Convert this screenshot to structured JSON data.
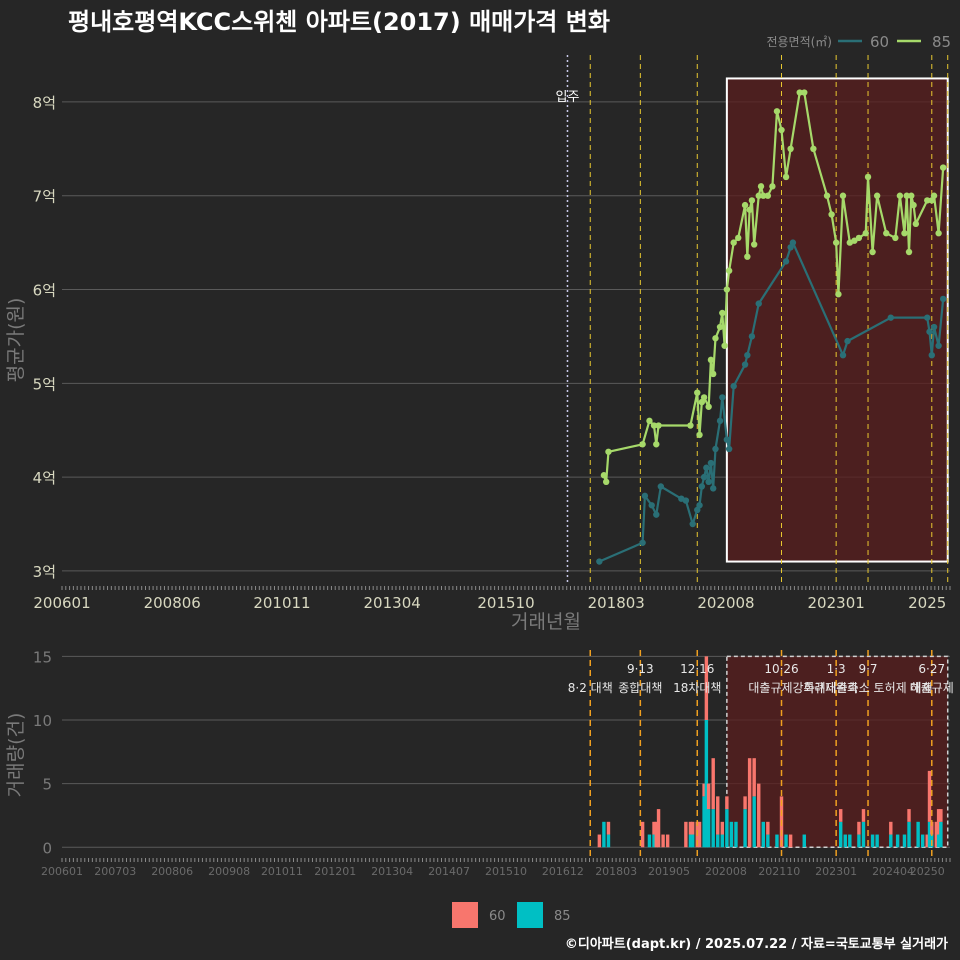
{
  "title": "평내호평역KCC스위첸 아파트(2017) 매매가격 변화",
  "footer": "©디아파트(dapt.kr) / 2025.07.22 / 자료=국토교통부 실거래가",
  "colors": {
    "bg": "#262626",
    "grid": "#5a5a5a",
    "text_axis": "#d8d8c0",
    "text_dim": "#8a8a8a",
    "s60_line": "#2a6f76",
    "s85_line": "#a6d96a",
    "bar60": "#f8766d",
    "bar85": "#00bfc4",
    "policy": "#e8c830",
    "policy_bottom": "#f0a020",
    "shade": "#5a1e1e",
    "box": "#ffffff"
  },
  "chart_data": [
    {
      "type": "line",
      "name": "price",
      "title": "평내호평역KCC스위첸 아파트(2017) 매매가격 변화",
      "xlabel": "거래년월",
      "ylabel": "평균가(원)",
      "xlim": [
        2006.0,
        2025.5
      ],
      "ylim": [
        2.85,
        8.5
      ],
      "ytick_values": [
        3,
        4,
        5,
        6,
        7,
        8
      ],
      "ytick_labels": [
        "3억",
        "4억",
        "5억",
        "6억",
        "7억",
        "8억"
      ],
      "xtick_values": [
        2006.0,
        2008.42,
        2010.83,
        2013.25,
        2015.75,
        2018.17,
        2020.58,
        2023.0,
        2025.0
      ],
      "xtick_labels": [
        "200601",
        "200806",
        "201011",
        "201304",
        "201510",
        "201803",
        "202008",
        "202301",
        "2025"
      ],
      "legend_title": "전용면적(㎡)",
      "legend_labels": [
        "60",
        "85"
      ],
      "move_in_label": "입주",
      "move_in_x": 2017.1,
      "policy_x": [
        2017.6,
        2018.7,
        2019.95,
        2021.8,
        2023.0,
        2023.7,
        2025.1,
        2025.45
      ],
      "highlight_box": {
        "x": [
          2020.6,
          2025.45
        ],
        "y": [
          3.1,
          8.25
        ]
      },
      "series": [
        {
          "name": "60",
          "x": [
            2017.8,
            2018.75,
            2018.8,
            2018.95,
            2019.05,
            2019.15,
            2019.6,
            2019.7,
            2019.85,
            2019.95,
            2020.0,
            2020.05,
            2020.1,
            2020.15,
            2020.2,
            2020.25,
            2020.3,
            2020.35,
            2020.45,
            2020.5,
            2020.6,
            2020.65,
            2020.75,
            2021.0,
            2021.05,
            2021.15,
            2021.3,
            2021.9,
            2022.0,
            2022.05,
            2023.15,
            2023.25,
            2024.2,
            2025.0,
            2025.05,
            2025.1,
            2025.15,
            2025.25,
            2025.35
          ],
          "values": [
            3.1,
            3.3,
            3.8,
            3.7,
            3.6,
            3.9,
            3.77,
            3.75,
            3.5,
            3.65,
            3.7,
            3.9,
            4.0,
            4.1,
            3.95,
            4.15,
            3.88,
            4.3,
            4.6,
            4.85,
            4.4,
            4.3,
            4.97,
            5.2,
            5.3,
            5.5,
            5.85,
            6.3,
            6.45,
            6.5,
            5.3,
            5.45,
            5.7,
            5.7,
            5.55,
            5.3,
            5.6,
            5.4,
            5.9
          ]
        },
        {
          "name": "85",
          "x": [
            2017.9,
            2017.95,
            2018.0,
            2018.75,
            2018.9,
            2019.0,
            2019.05,
            2019.1,
            2019.8,
            2019.95,
            2020.0,
            2020.05,
            2020.1,
            2020.2,
            2020.25,
            2020.3,
            2020.35,
            2020.45,
            2020.5,
            2020.55,
            2020.6,
            2020.65,
            2020.75,
            2020.85,
            2021.0,
            2021.05,
            2021.1,
            2021.15,
            2021.2,
            2021.3,
            2021.35,
            2021.4,
            2021.5,
            2021.6,
            2021.7,
            2021.8,
            2021.9,
            2022.0,
            2022.2,
            2022.3,
            2022.5,
            2022.8,
            2022.9,
            2023.0,
            2023.05,
            2023.15,
            2023.3,
            2023.4,
            2023.5,
            2023.65,
            2023.7,
            2023.8,
            2023.9,
            2024.1,
            2024.3,
            2024.4,
            2024.5,
            2024.55,
            2024.6,
            2024.65,
            2024.7,
            2024.75,
            2025.0,
            2025.1,
            2025.15,
            2025.25,
            2025.35
          ],
          "values": [
            4.02,
            3.95,
            4.27,
            4.35,
            4.6,
            4.55,
            4.35,
            4.55,
            4.55,
            4.9,
            4.45,
            4.8,
            4.85,
            4.75,
            5.25,
            5.1,
            5.48,
            5.6,
            5.75,
            5.4,
            6.0,
            6.2,
            6.5,
            6.55,
            6.9,
            6.35,
            6.85,
            6.95,
            6.48,
            7.0,
            7.1,
            7.0,
            7.0,
            7.1,
            7.9,
            7.7,
            7.2,
            7.5,
            8.1,
            8.1,
            7.5,
            7.0,
            6.8,
            6.5,
            5.95,
            7.0,
            6.5,
            6.52,
            6.55,
            6.6,
            7.2,
            6.4,
            7.0,
            6.6,
            6.55,
            7.0,
            6.6,
            7.0,
            6.4,
            7.0,
            6.9,
            6.7,
            6.95,
            6.95,
            7.0,
            6.6,
            7.3
          ]
        }
      ]
    },
    {
      "type": "bar",
      "name": "volume",
      "xlabel": "",
      "ylabel": "거래량(건)",
      "xlim": [
        2006.0,
        2025.5
      ],
      "ylim": [
        -1,
        15.5
      ],
      "ytick_values": [
        0,
        5,
        10,
        15
      ],
      "ytick_labels": [
        "0",
        "5",
        "10",
        "15"
      ],
      "xtick_values": [
        2006.0,
        2007.17,
        2008.42,
        2009.67,
        2010.83,
        2012.0,
        2013.25,
        2014.5,
        2015.75,
        2017.0,
        2018.17,
        2019.33,
        2020.58,
        2021.75,
        2023.0,
        2024.25,
        2025.0
      ],
      "xtick_labels": [
        "200601",
        "200703",
        "200806",
        "200908",
        "201011",
        "201201",
        "201304",
        "201407",
        "201510",
        "201612",
        "201803",
        "201905",
        "202008",
        "202110",
        "202301",
        "202404",
        "20250"
      ],
      "legend_labels": [
        "60",
        "85"
      ],
      "policies": [
        {
          "x": 2017.6,
          "date": "",
          "name": "8·2 대책"
        },
        {
          "x": 2018.7,
          "date": "9·13",
          "name": "종합대책"
        },
        {
          "x": 2019.95,
          "date": "12·16",
          "name": "18차대책"
        },
        {
          "x": 2021.8,
          "date": "10·26",
          "name": "대출규제강화"
        },
        {
          "x": 2023.0,
          "date": "1·3",
          "name": "규제완화"
        },
        {
          "x": 2023.7,
          "date": "9·7",
          "name": "특례대출축소 토허제 해제"
        },
        {
          "x": 2025.1,
          "date": "6·27",
          "name": "대출규제"
        }
      ],
      "highlight_box": {
        "x": [
          2020.6,
          2025.45
        ],
        "y": [
          0,
          15
        ]
      },
      "x": [
        2017.8,
        2017.9,
        2018.0,
        2018.75,
        2018.9,
        2019.0,
        2019.05,
        2019.1,
        2019.2,
        2019.3,
        2019.7,
        2019.8,
        2019.85,
        2019.95,
        2020.0,
        2020.1,
        2020.15,
        2020.2,
        2020.3,
        2020.4,
        2020.5,
        2020.6,
        2020.7,
        2020.8,
        2021.0,
        2021.1,
        2021.2,
        2021.3,
        2021.4,
        2021.5,
        2021.7,
        2021.8,
        2021.9,
        2022.0,
        2022.1,
        2022.2,
        2022.3,
        2022.5,
        2022.7,
        2022.9,
        2023.1,
        2023.2,
        2023.3,
        2023.5,
        2023.6,
        2023.8,
        2023.9,
        2024.2,
        2024.35,
        2024.5,
        2024.6,
        2024.8,
        2024.9,
        2025.0,
        2025.05,
        2025.1,
        2025.2,
        2025.25,
        2025.3
      ],
      "series": [
        {
          "name": "60",
          "values": [
            1,
            0,
            1,
            2,
            0,
            1,
            2,
            3,
            1,
            1,
            2,
            1,
            1,
            2,
            2,
            1,
            5,
            2,
            4,
            3,
            1,
            1,
            0,
            0,
            1,
            7,
            3,
            5,
            0,
            1,
            0,
            4,
            0,
            1,
            0,
            0,
            0,
            0,
            0,
            0,
            1,
            0,
            0,
            1,
            1,
            0,
            0,
            1,
            0,
            0,
            1,
            0,
            0,
            1,
            4,
            1,
            2,
            2,
            1
          ]
        },
        {
          "name": "85",
          "values": [
            0,
            2,
            1,
            0,
            1,
            1,
            0,
            0,
            0,
            0,
            0,
            1,
            1,
            0,
            0,
            4,
            10,
            3,
            3,
            1,
            1,
            3,
            2,
            2,
            3,
            0,
            4,
            0,
            2,
            1,
            1,
            0,
            1,
            0,
            0,
            0,
            1,
            0,
            0,
            0,
            2,
            1,
            1,
            1,
            2,
            1,
            1,
            1,
            1,
            1,
            2,
            2,
            1,
            0,
            2,
            1,
            0,
            1,
            2
          ]
        }
      ]
    }
  ]
}
